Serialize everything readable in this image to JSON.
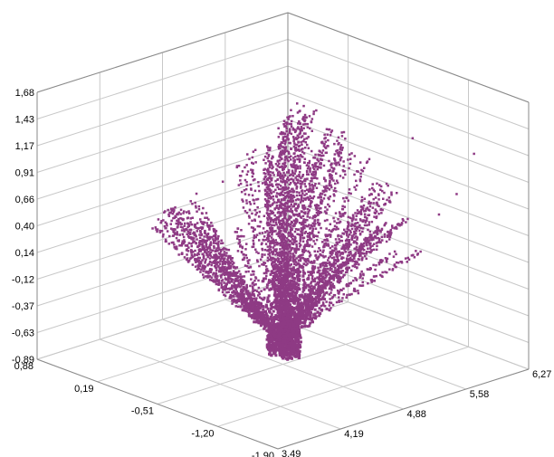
{
  "chart_data": {
    "type": "scatter3d",
    "title": "",
    "xlabel": "",
    "ylabel": "",
    "zlabel": "",
    "grid": true,
    "legend": "none",
    "point_color": "#8e3a84",
    "x_axis": {
      "ticks": [
        "0,88",
        "0,19",
        "-0,51",
        "-1,20",
        "-1,90"
      ],
      "range": [
        -1.9,
        0.88
      ]
    },
    "y_axis": {
      "ticks": [
        "3,49",
        "4,19",
        "4,88",
        "5,58",
        "6,27"
      ],
      "range": [
        3.49,
        6.27
      ]
    },
    "z_axis": {
      "ticks": [
        "-0,89",
        "-0,63",
        "-0,37",
        "-0,12",
        "0,14",
        "0,40",
        "0,66",
        "0,91",
        "1,17",
        "1,43",
        "1,68"
      ],
      "range": [
        -0.89,
        1.68
      ]
    },
    "description_branches": [
      {
        "from": [
          -0.5,
          4.9,
          -0.8
        ],
        "to": [
          0.65,
          4.8,
          0.2
        ]
      },
      {
        "from": [
          -0.5,
          4.9,
          -0.8
        ],
        "to": [
          0.2,
          4.6,
          0.55
        ]
      },
      {
        "from": [
          -0.5,
          4.9,
          -0.8
        ],
        "to": [
          -0.4,
          5.1,
          1.4
        ]
      },
      {
        "from": [
          -0.5,
          4.9,
          -0.8
        ],
        "to": [
          -0.55,
          5.2,
          1.55
        ]
      },
      {
        "from": [
          -0.5,
          4.9,
          -0.8
        ],
        "to": [
          -0.7,
          5.4,
          1.2
        ]
      },
      {
        "from": [
          -0.5,
          4.9,
          -0.8
        ],
        "to": [
          -0.95,
          5.6,
          0.75
        ]
      },
      {
        "from": [
          -0.5,
          4.9,
          -0.8
        ],
        "to": [
          -0.2,
          4.9,
          1.1
        ]
      },
      {
        "from": [
          -0.5,
          4.9,
          -0.8
        ],
        "to": [
          -0.85,
          5.7,
          0.4
        ]
      }
    ]
  }
}
